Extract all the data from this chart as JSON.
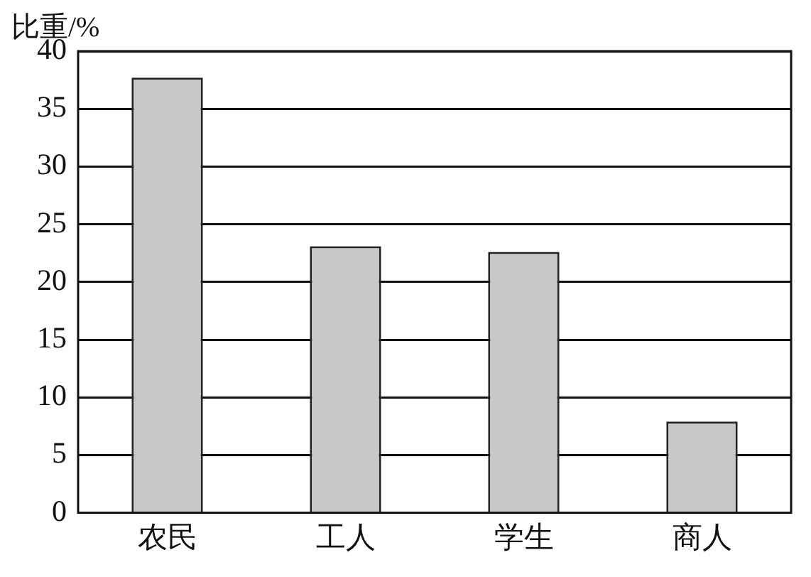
{
  "chart_data": {
    "type": "bar",
    "ylabel": "比重/%",
    "categories": [
      "农民",
      "工人",
      "学生",
      "商人"
    ],
    "values": [
      37.7,
      23.1,
      22.6,
      7.9
    ],
    "color": "#c8c8c8",
    "ylim": [
      0,
      40
    ],
    "yticks": [
      0,
      5,
      10,
      15,
      20,
      25,
      30,
      35,
      40
    ],
    "grid": "y"
  }
}
